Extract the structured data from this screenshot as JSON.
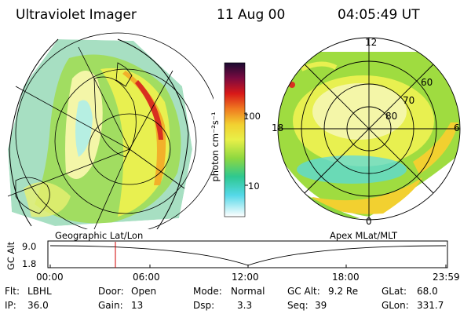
{
  "header": {
    "title": "Ultraviolet Imager",
    "date": "11 Aug 00",
    "time": "04:05:49 UT"
  },
  "colorbar": {
    "unit_label": "photon cm⁻²s⁻¹",
    "tick_labels": [
      "100",
      "10"
    ]
  },
  "left_panel": {
    "caption": "Geographic Lat/Lon"
  },
  "right_panel": {
    "caption": "Apex MLat/MLT",
    "lat_labels": [
      "60",
      "70",
      "80"
    ],
    "mlt_labels": [
      "12",
      "18",
      "6",
      "0"
    ]
  },
  "timeline": {
    "axis_label": "GC Alt",
    "y_labels": [
      "9.0",
      "1.8"
    ],
    "x_labels": [
      "00:00",
      "06:00",
      "12:00",
      "18:00",
      "23:59"
    ]
  },
  "footer": {
    "row1": [
      {
        "label": "Flt:",
        "value": "LBHL"
      },
      {
        "label": "Door:",
        "value": "Open"
      },
      {
        "label": "Mode:",
        "value": "Normal"
      },
      {
        "label": "GC Alt:",
        "value": "9.2 Re"
      },
      {
        "label": "GLat:",
        "value": "68.0"
      }
    ],
    "row2": [
      {
        "label": "IP:",
        "value": "36.0"
      },
      {
        "label": "Gain:",
        "value": "13"
      },
      {
        "label": "Dsp:",
        "value": "3.3"
      },
      {
        "label": "Seq:",
        "value": "39"
      },
      {
        "label": "GLon:",
        "value": "331.7"
      }
    ]
  },
  "colors": {
    "marker": "#d00000",
    "background": "#ffffff",
    "line": "#000000"
  }
}
